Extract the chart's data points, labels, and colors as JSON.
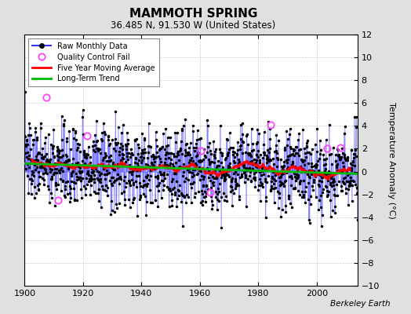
{
  "title": "MAMMOTH SPRING",
  "subtitle": "36.485 N, 91.530 W (United States)",
  "credit": "Berkeley Earth",
  "ylabel": "Temperature Anomaly (°C)",
  "xlim": [
    1900,
    2014
  ],
  "ylim": [
    -10,
    12
  ],
  "yticks": [
    -10,
    -8,
    -6,
    -4,
    -2,
    0,
    2,
    4,
    6,
    8,
    10,
    12
  ],
  "xticks": [
    1900,
    1920,
    1940,
    1960,
    1980,
    2000
  ],
  "outer_bg": "#e0e0e0",
  "plot_bg": "#ffffff",
  "grid_color": "#aaaaaa",
  "raw_line_color": "#3333ff",
  "raw_dot_color": "#000000",
  "qc_fail_color": "#ff44ff",
  "moving_avg_color": "#ff0000",
  "trend_color": "#00bb00",
  "seed": 137
}
